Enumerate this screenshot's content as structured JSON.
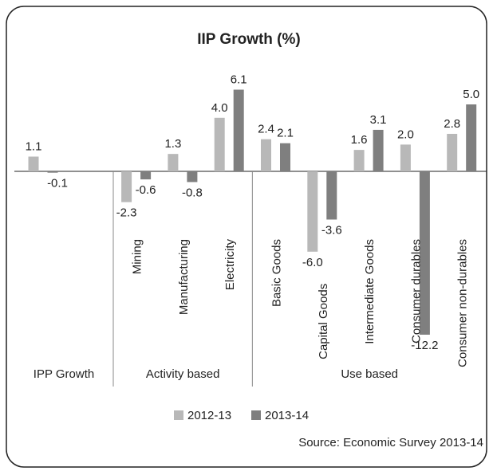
{
  "chart_data": {
    "type": "bar",
    "title": "IIP Growth (%)",
    "categories": [
      null,
      "Mining",
      "Manufacturing",
      "Electricity",
      "Basic Goods",
      "Capital Goods",
      "Intermediate Goods",
      "Consumer durables",
      "Consumer non-durables"
    ],
    "groups": [
      {
        "name": "IPP Growth",
        "count": 1
      },
      {
        "name": "Activity based",
        "count": 3
      },
      {
        "name": "Use based",
        "count": 5
      }
    ],
    "series": [
      {
        "name": "2012-13",
        "color": "#b8b8b8",
        "values": [
          1.1,
          -2.3,
          1.3,
          4.0,
          2.4,
          -6.0,
          1.6,
          2.0,
          2.8
        ],
        "value_labels": [
          "1.1",
          "-2.3",
          "1.3",
          "4.0",
          "2.4",
          "-6.0",
          "1.6",
          "2.0",
          "2.8"
        ]
      },
      {
        "name": "2013-14",
        "color": "#7f7f7f",
        "values": [
          -0.1,
          -0.6,
          -0.8,
          6.1,
          2.1,
          -3.6,
          3.1,
          -12.2,
          5.0
        ],
        "value_labels": [
          "-0.1",
          "-0.6",
          "-0.8",
          "6.1",
          "2.1",
          "-3.6",
          "3.1",
          "-12.2",
          "5.0"
        ]
      }
    ],
    "source": "Source: Economic Survey 2013-14"
  }
}
